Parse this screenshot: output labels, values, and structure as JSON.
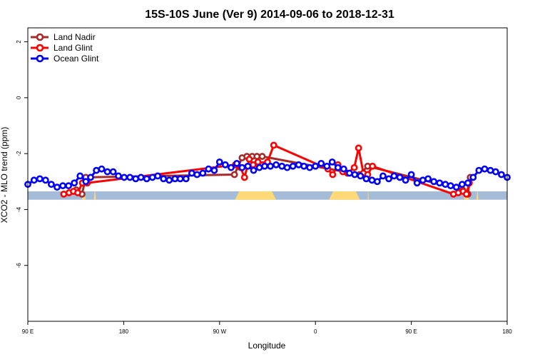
{
  "chart_data": {
    "type": "line",
    "title": "15S-10S June (Ver 9)   2014-09-06 to 2018-12-31",
    "xlabel": "Longitude",
    "ylabel": "XCO2 - MLO trend (ppm)",
    "xlim": [
      0,
      100
    ],
    "ylim": [
      -8.0,
      2.5
    ],
    "x_ticks": [
      {
        "pos": 0,
        "label": "90 E"
      },
      {
        "pos": 20,
        "label": "180"
      },
      {
        "pos": 40,
        "label": "90 W"
      },
      {
        "pos": 60,
        "label": "0"
      },
      {
        "pos": 80,
        "label": "90 E"
      },
      {
        "pos": 100,
        "label": "180"
      }
    ],
    "y_ticks": [
      -6,
      -4,
      -2,
      0,
      2
    ],
    "legend": {
      "placement": "top-left"
    },
    "surface_band": {
      "ymin": -3.65,
      "ymax": -3.35,
      "ocean_color": "#a5bcd9",
      "land_color": "#fdd978",
      "land_segments": [
        [
          11.3,
          11.6
        ],
        [
          11.6,
          12.0
        ],
        [
          13.8,
          14.2
        ],
        [
          43.2,
          51.8
        ],
        [
          62.8,
          69.3
        ],
        [
          70.9,
          71.1
        ],
        [
          91.0,
          91.5
        ],
        [
          91.5,
          92.0
        ],
        [
          93.6,
          94.0
        ]
      ]
    },
    "series": [
      {
        "name": "Land Nadir",
        "color": "#a52a2a",
        "x": [
          10.1,
          11.3,
          12.1,
          43.1,
          44.7,
          45.7,
          46.8,
          47.8,
          48.9,
          69.2,
          70.9,
          90.7,
          91.8,
          92.3
        ],
        "y": [
          -3.3,
          -3.45,
          -2.85,
          -2.75,
          -2.15,
          -2.1,
          -2.1,
          -2.1,
          -2.1,
          -2.75,
          -2.45,
          -3.3,
          -3.45,
          -2.85
        ]
      },
      {
        "name": "Land Glint",
        "color": "#ff0000",
        "x": [
          7.5,
          8.6,
          9.5,
          10.4,
          11.4,
          12.4,
          43.3,
          44.4,
          45.2,
          46.2,
          47.0,
          48.0,
          49.0,
          50.0,
          51.3,
          62.6,
          63.6,
          64.7,
          65.7,
          66.7,
          68.1,
          69.0,
          70.0,
          70.9,
          71.9,
          88.8,
          89.8,
          90.8,
          91.5,
          92.1
        ],
        "y": [
          -3.45,
          -3.4,
          -3.35,
          -3.4,
          -3.05,
          -3.05,
          -2.4,
          -2.5,
          -2.85,
          -2.2,
          -2.4,
          -2.3,
          -2.4,
          -2.3,
          -1.7,
          -2.55,
          -2.75,
          -2.4,
          -2.65,
          -2.7,
          -2.5,
          -1.8,
          -2.7,
          -2.75,
          -2.45,
          -3.45,
          -3.4,
          -3.35,
          -3.45,
          -3.05
        ]
      },
      {
        "name": "Ocean Glint",
        "color": "#0000ff",
        "x": [
          0.0,
          1.3,
          2.5,
          3.7,
          4.9,
          6.1,
          7.3,
          8.5,
          9.7,
          10.9,
          12.1,
          13.1,
          14.3,
          15.4,
          16.6,
          17.8,
          18.9,
          20.1,
          21.3,
          22.5,
          23.6,
          24.8,
          26.0,
          27.1,
          28.3,
          29.5,
          30.7,
          31.8,
          33.0,
          34.2,
          35.3,
          36.5,
          37.7,
          38.9,
          40.0,
          41.2,
          42.4,
          43.6,
          44.7,
          45.9,
          47.1,
          48.3,
          49.4,
          50.6,
          51.8,
          53.0,
          54.1,
          55.3,
          56.5,
          57.6,
          58.8,
          60.0,
          61.2,
          62.4,
          63.5,
          64.7,
          65.9,
          67.1,
          68.2,
          69.4,
          70.6,
          71.8,
          72.9,
          74.1,
          75.3,
          76.4,
          77.6,
          78.8,
          80.0,
          81.2,
          82.4,
          83.5,
          84.7,
          85.9,
          87.1,
          88.2,
          89.4,
          90.6,
          91.8,
          92.9,
          94.1,
          95.3,
          96.5,
          97.6,
          98.8,
          100.0
        ],
        "y": [
          -3.1,
          -2.95,
          -2.9,
          -2.95,
          -3.1,
          -3.2,
          -3.15,
          -3.15,
          -3.05,
          -2.8,
          -3.0,
          -2.85,
          -2.6,
          -2.55,
          -2.65,
          -2.65,
          -2.8,
          -2.85,
          -2.85,
          -2.9,
          -2.85,
          -2.9,
          -2.85,
          -2.8,
          -2.9,
          -2.95,
          -2.9,
          -2.9,
          -2.9,
          -2.7,
          -2.75,
          -2.7,
          -2.55,
          -2.6,
          -2.3,
          -2.4,
          -2.5,
          -2.35,
          -2.5,
          -2.45,
          -2.6,
          -2.5,
          -2.45,
          -2.45,
          -2.4,
          -2.45,
          -2.5,
          -2.45,
          -2.4,
          -2.45,
          -2.5,
          -2.45,
          -2.35,
          -2.45,
          -2.3,
          -2.5,
          -2.55,
          -2.7,
          -2.75,
          -2.8,
          -2.9,
          -2.95,
          -3.0,
          -2.8,
          -2.9,
          -2.8,
          -2.85,
          -2.95,
          -2.75,
          -3.05,
          -2.95,
          -2.9,
          -3.0,
          -3.05,
          -3.1,
          -3.15,
          -3.2,
          -3.1,
          -3.05,
          -2.85,
          -2.6,
          -2.55,
          -2.6,
          -2.65,
          -2.75,
          -2.85
        ]
      }
    ]
  }
}
